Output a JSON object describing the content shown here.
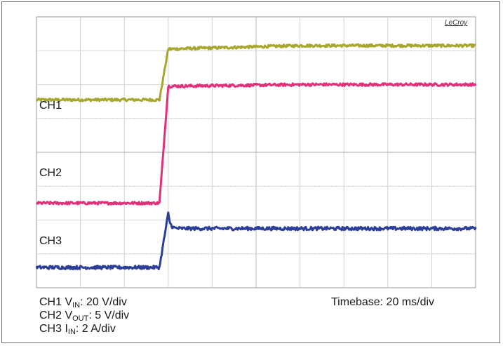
{
  "chart_data": {
    "type": "line",
    "instrument": "LeCroy",
    "x": {
      "unit": "ms",
      "per_div": 20,
      "divisions": 10,
      "range": [
        0,
        200
      ]
    },
    "y": {
      "divisions": 8
    },
    "grid": true,
    "channel_labels": [
      "CH1",
      "CH2",
      "CH3"
    ],
    "series": [
      {
        "name": "CH1",
        "color": "#a8a62b",
        "scale_text": "20 V/div",
        "baseline_div": 5.55,
        "final_div": 7.05,
        "step_start_ms": 56,
        "step_end_ms": 60,
        "overshoot_div": 0.0,
        "noise_div": 0.04,
        "slight_rise_div": 0.1
      },
      {
        "name": "CH2",
        "color": "#e0307a",
        "scale_text": "5 V/div",
        "baseline_div": 2.5,
        "final_div": 5.95,
        "step_start_ms": 56,
        "step_end_ms": 60,
        "overshoot_div": 0.0,
        "noise_div": 0.04,
        "slight_rise_div": 0.05
      },
      {
        "name": "CH3",
        "color": "#2a3e9a",
        "scale_text": "2 A/div",
        "baseline_div": 0.6,
        "final_div": 1.75,
        "step_start_ms": 56,
        "step_end_ms": 60,
        "overshoot_div": 0.45,
        "noise_div": 0.05,
        "slight_rise_div": 0.0
      }
    ]
  },
  "captions": {
    "ch1_prefix": "CH1 V",
    "ch1_sub": "IN",
    "ch1_value": ": 20 V/div",
    "ch2_prefix": "CH2 V",
    "ch2_sub": "OUT",
    "ch2_value": ": 5 V/div",
    "ch3_prefix": "CH3 I",
    "ch3_sub": "IN",
    "ch3_value": ": 2 A/div",
    "timebase": "Timebase: 20 ms/div"
  }
}
